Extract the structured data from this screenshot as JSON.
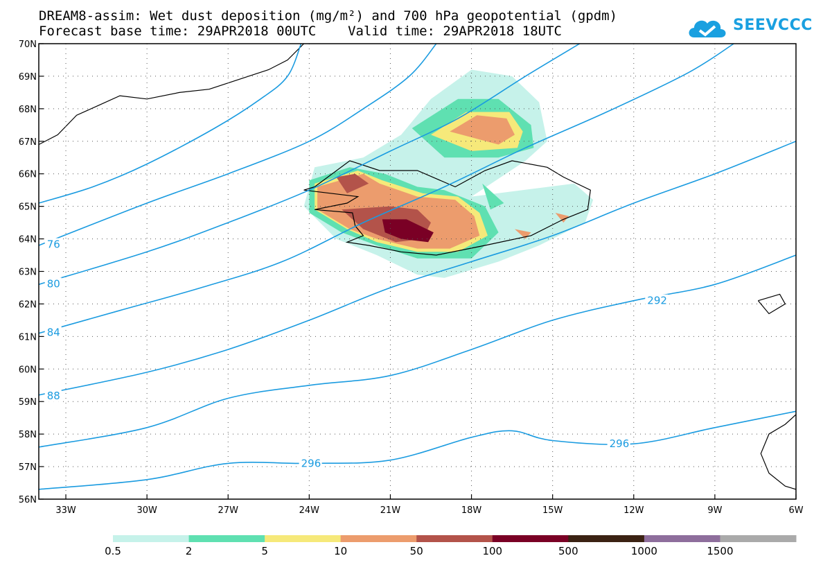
{
  "title": {
    "line1": "DREAM8-assim: Wet dust deposition (mg/m²) and 700 hPa geopotential (gpdm)",
    "line2": "Forecast base time: 29APR2018 00UTC    Valid time: 29APR2018 18UTC"
  },
  "logo": {
    "text": "SEEVCCC",
    "icon": "cloud-logo-icon",
    "color": "#1aa0e0"
  },
  "map": {
    "lon_range": [
      -34,
      -6
    ],
    "lat_range": [
      56,
      70
    ],
    "lon_ticks": [
      {
        "value": -33,
        "label": "33W"
      },
      {
        "value": -30,
        "label": "30W"
      },
      {
        "value": -27,
        "label": "27W"
      },
      {
        "value": -24,
        "label": "24W"
      },
      {
        "value": -21,
        "label": "21W"
      },
      {
        "value": -18,
        "label": "18W"
      },
      {
        "value": -15,
        "label": "15W"
      },
      {
        "value": -12,
        "label": "12W"
      },
      {
        "value": -9,
        "label": "9W"
      },
      {
        "value": -6,
        "label": "6W"
      }
    ],
    "lat_ticks": [
      {
        "value": 56,
        "label": "56N"
      },
      {
        "value": 57,
        "label": "57N"
      },
      {
        "value": 58,
        "label": "58N"
      },
      {
        "value": 59,
        "label": "59N"
      },
      {
        "value": 60,
        "label": "60N"
      },
      {
        "value": 61,
        "label": "61N"
      },
      {
        "value": 62,
        "label": "62N"
      },
      {
        "value": 63,
        "label": "63N"
      },
      {
        "value": 64,
        "label": "64N"
      },
      {
        "value": 65,
        "label": "65N"
      },
      {
        "value": 66,
        "label": "66N"
      },
      {
        "value": 67,
        "label": "67N"
      },
      {
        "value": 68,
        "label": "68N"
      },
      {
        "value": 69,
        "label": "69N"
      },
      {
        "value": 70,
        "label": "70N"
      }
    ],
    "grid": true,
    "contour_color": "#1a9be0",
    "contours": [
      {
        "points": [
          [
            -24.3,
            70
          ],
          [
            -24.8,
            69
          ],
          [
            -25.8,
            68.3
          ],
          [
            -27.5,
            67.4
          ],
          [
            -30,
            66.3
          ],
          [
            -32,
            65.6
          ],
          [
            -34,
            65.1
          ]
        ]
      },
      {
        "points": [
          [
            -19.3,
            70
          ],
          [
            -20.3,
            69
          ],
          [
            -22,
            68
          ],
          [
            -24,
            67
          ],
          [
            -27,
            66
          ],
          [
            -30,
            65.1
          ],
          [
            -34,
            63.8
          ]
        ],
        "label": {
          "text": "76",
          "lon": -33.7,
          "lat": 63.83
        }
      },
      {
        "points": [
          [
            -14,
            70
          ],
          [
            -16,
            69
          ],
          [
            -18.5,
            67.7
          ],
          [
            -21,
            66.7
          ],
          [
            -24,
            65.5
          ],
          [
            -27,
            64.5
          ],
          [
            -30,
            63.6
          ],
          [
            -34,
            62.6
          ]
        ],
        "label": {
          "text": "80",
          "lon": -33.7,
          "lat": 62.62
        }
      },
      {
        "points": [
          [
            -8.3,
            70
          ],
          [
            -10,
            69.1
          ],
          [
            -13,
            67.9
          ],
          [
            -16,
            66.8
          ],
          [
            -19,
            65.6
          ],
          [
            -22,
            64.5
          ],
          [
            -25,
            63.3
          ],
          [
            -28,
            62.5
          ],
          [
            -31,
            61.8
          ],
          [
            -34,
            61.1
          ]
        ],
        "label": {
          "text": "84",
          "lon": -33.7,
          "lat": 61.12
        }
      },
      {
        "points": [
          [
            -6,
            67
          ],
          [
            -9,
            66
          ],
          [
            -12,
            65.1
          ],
          [
            -15,
            64.1
          ],
          [
            -18,
            63.3
          ],
          [
            -21,
            62.5
          ],
          [
            -24,
            61.5
          ],
          [
            -27,
            60.6
          ],
          [
            -30,
            59.9
          ],
          [
            -34,
            59.2
          ]
        ],
        "label": {
          "text": "88",
          "lon": -33.7,
          "lat": 59.18
        }
      },
      {
        "points": [
          [
            -6,
            63.5
          ],
          [
            -9,
            62.6
          ],
          [
            -12,
            62.1
          ],
          [
            -15,
            61.5
          ],
          [
            -18,
            60.6
          ],
          [
            -21,
            59.8
          ],
          [
            -24,
            59.5
          ],
          [
            -27,
            59.1
          ],
          [
            -30,
            58.2
          ],
          [
            -34,
            57.6
          ]
        ],
        "label": {
          "text": "292",
          "lon": -11.5,
          "lat": 62.1
        }
      },
      {
        "points": [
          [
            -6,
            58.7
          ],
          [
            -9,
            58.2
          ],
          [
            -12,
            57.7
          ],
          [
            -15,
            57.8
          ],
          [
            -16.5,
            58.1
          ],
          [
            -18,
            57.9
          ],
          [
            -21,
            57.2
          ],
          [
            -24,
            57.1
          ],
          [
            -27,
            57.1
          ],
          [
            -30,
            56.6
          ],
          [
            -34,
            56.3
          ]
        ],
        "label": {
          "text": "296",
          "lon": -12.9,
          "lat": 57.7
        },
        "label2": {
          "text": "296",
          "lon": -24.3,
          "lat": 57.1
        }
      }
    ],
    "dust_areas": [
      {
        "level": "0.5",
        "polygons": [
          [
            [
              -20.6,
              67.2
            ],
            [
              -19.5,
              68.3
            ],
            [
              -18,
              69.2
            ],
            [
              -16.5,
              69.0
            ],
            [
              -15.5,
              68.2
            ],
            [
              -15.2,
              67.0
            ],
            [
              -16,
              66.4
            ],
            [
              -18,
              65.3
            ],
            [
              -14.2,
              65.7
            ],
            [
              -13.5,
              65.2
            ],
            [
              -13.8,
              64.5
            ],
            [
              -15.5,
              63.8
            ],
            [
              -17,
              63.3
            ],
            [
              -19,
              62.8
            ],
            [
              -20,
              62.9
            ],
            [
              -21.5,
              63.5
            ],
            [
              -23,
              64.0
            ],
            [
              -24.2,
              65.0
            ],
            [
              -23.8,
              66.2
            ],
            [
              -22,
              66.5
            ]
          ]
        ]
      },
      {
        "level": "2",
        "polygons": [
          [
            [
              -20.2,
              67.4
            ],
            [
              -18.5,
              68.3
            ],
            [
              -17,
              68.3
            ],
            [
              -15.8,
              67.5
            ],
            [
              -15.7,
              66.8
            ],
            [
              -17,
              66.5
            ],
            [
              -19,
              66.5
            ]
          ],
          [
            [
              -24,
              65.8
            ],
            [
              -22.5,
              66.2
            ],
            [
              -21.2,
              66
            ],
            [
              -20,
              65.6
            ],
            [
              -19,
              65.5
            ],
            [
              -17.5,
              65.0
            ],
            [
              -17,
              64.2
            ],
            [
              -18,
              63.4
            ],
            [
              -20,
              63.4
            ],
            [
              -21.5,
              63.8
            ],
            [
              -22.8,
              64.2
            ],
            [
              -24,
              64.8
            ]
          ],
          [
            [
              -17.6,
              65.7
            ],
            [
              -16.8,
              65.1
            ],
            [
              -17.3,
              64.9
            ]
          ]
        ]
      },
      {
        "level": "5",
        "polygons": [
          [
            [
              -19.5,
              67.2
            ],
            [
              -18.2,
              67.9
            ],
            [
              -16.6,
              67.9
            ],
            [
              -16.1,
              67.3
            ],
            [
              -16.3,
              66.8
            ],
            [
              -18.0,
              66.7
            ]
          ],
          [
            [
              -23.8,
              65.7
            ],
            [
              -22.2,
              66.1
            ],
            [
              -21.3,
              65.8
            ],
            [
              -19.8,
              65.4
            ],
            [
              -18.5,
              65.3
            ],
            [
              -17.7,
              64.8
            ],
            [
              -17.4,
              64.1
            ],
            [
              -18.5,
              63.6
            ],
            [
              -20,
              63.6
            ],
            [
              -21.5,
              63.9
            ],
            [
              -22.6,
              64.3
            ],
            [
              -23.8,
              64.9
            ]
          ]
        ]
      },
      {
        "level": "10",
        "polygons": [
          [
            [
              -18.8,
              67.3
            ],
            [
              -17.8,
              67.8
            ],
            [
              -16.7,
              67.7
            ],
            [
              -16.4,
              67.2
            ],
            [
              -17.0,
              66.9
            ]
          ],
          [
            [
              -23.7,
              65.6
            ],
            [
              -22.0,
              66.0
            ],
            [
              -21.4,
              65.7
            ],
            [
              -20.0,
              65.3
            ],
            [
              -18.6,
              65.2
            ],
            [
              -17.9,
              64.7
            ],
            [
              -17.7,
              64.1
            ],
            [
              -18.8,
              63.7
            ],
            [
              -20.0,
              63.7
            ],
            [
              -21.5,
              64.0
            ],
            [
              -22.5,
              64.3
            ],
            [
              -23.7,
              64.9
            ]
          ],
          [
            [
              -16.4,
              64.3
            ],
            [
              -15.8,
              64.2
            ],
            [
              -16.0,
              64.0
            ]
          ],
          [
            [
              -14.9,
              64.8
            ],
            [
              -14.4,
              64.7
            ],
            [
              -14.6,
              64.5
            ]
          ]
        ]
      },
      {
        "level": "50",
        "polygons": [
          [
            [
              -23.0,
              65.9
            ],
            [
              -22.3,
              66.0
            ],
            [
              -21.8,
              65.7
            ],
            [
              -22.6,
              65.4
            ]
          ],
          [
            [
              -22.8,
              64.9
            ],
            [
              -21.0,
              65.0
            ],
            [
              -20.0,
              64.9
            ],
            [
              -19.5,
              64.5
            ],
            [
              -19.8,
              64.0
            ],
            [
              -20.8,
              63.9
            ],
            [
              -22.0,
              64.3
            ]
          ]
        ]
      },
      {
        "level": "100",
        "polygons": [
          [
            [
              -21.3,
              64.6
            ],
            [
              -20.4,
              64.6
            ],
            [
              -19.4,
              64.2
            ],
            [
              -19.6,
              63.9
            ],
            [
              -20.6,
              64.0
            ],
            [
              -21.2,
              64.2
            ]
          ]
        ]
      }
    ],
    "coastlines": [
      {
        "points": [
          [
            -23.8,
            65.6
          ],
          [
            -22.5,
            66.4
          ],
          [
            -21.4,
            66.1
          ],
          [
            -20,
            66.1
          ],
          [
            -18.6,
            65.6
          ],
          [
            -17.5,
            66.1
          ],
          [
            -16.5,
            66.4
          ],
          [
            -15.2,
            66.2
          ],
          [
            -14.6,
            65.9
          ],
          [
            -13.6,
            65.5
          ],
          [
            -13.7,
            64.9
          ],
          [
            -14.6,
            64.6
          ],
          [
            -15.8,
            64.1
          ],
          [
            -17.5,
            63.8
          ],
          [
            -19.3,
            63.5
          ],
          [
            -20.6,
            63.6
          ],
          [
            -21.8,
            63.8
          ],
          [
            -22.6,
            63.9
          ],
          [
            -22.0,
            64.1
          ],
          [
            -22.3,
            64.4
          ],
          [
            -22.4,
            64.8
          ],
          [
            -23.8,
            64.9
          ],
          [
            -22.6,
            65.1
          ],
          [
            -22.2,
            65.3
          ],
          [
            -24.2,
            65.5
          ],
          [
            -23.8,
            65.6
          ]
        ]
      },
      {
        "points": [
          [
            -34,
            66.9
          ],
          [
            -33.3,
            67.2
          ],
          [
            -32.6,
            67.8
          ],
          [
            -31.8,
            68.1
          ],
          [
            -31.0,
            68.4
          ],
          [
            -30.0,
            68.3
          ],
          [
            -28.8,
            68.5
          ],
          [
            -27.7,
            68.6
          ],
          [
            -26.6,
            68.9
          ],
          [
            -25.5,
            69.2
          ],
          [
            -24.8,
            69.5
          ],
          [
            -24.2,
            70
          ]
        ]
      },
      {
        "points": [
          [
            -7.4,
            62.1
          ],
          [
            -6.6,
            62.3
          ],
          [
            -6.4,
            62.0
          ],
          [
            -7.0,
            61.7
          ],
          [
            -7.4,
            62.1
          ]
        ]
      },
      {
        "points": [
          [
            -6,
            58.6
          ],
          [
            -6.4,
            58.3
          ],
          [
            -7.0,
            58.0
          ],
          [
            -7.3,
            57.4
          ],
          [
            -7.0,
            56.8
          ],
          [
            -6.4,
            56.4
          ],
          [
            -6.0,
            56.3
          ]
        ]
      }
    ]
  },
  "legend": {
    "bins": [
      {
        "label": "0.5",
        "color": "#c6f2ea"
      },
      {
        "label": "2",
        "color": "#5fe0b1"
      },
      {
        "label": "5",
        "color": "#f6e97a"
      },
      {
        "label": "10",
        "color": "#ec9c6d"
      },
      {
        "label": "50",
        "color": "#b3534a"
      },
      {
        "label": "100",
        "color": "#7a0025"
      },
      {
        "label": "500",
        "color": "#3b2213"
      },
      {
        "label": "1000",
        "color": "#8e6e9c"
      },
      {
        "label": "1500",
        "color": "#aaaaaa"
      }
    ],
    "last_color": "#aaaaaa"
  }
}
